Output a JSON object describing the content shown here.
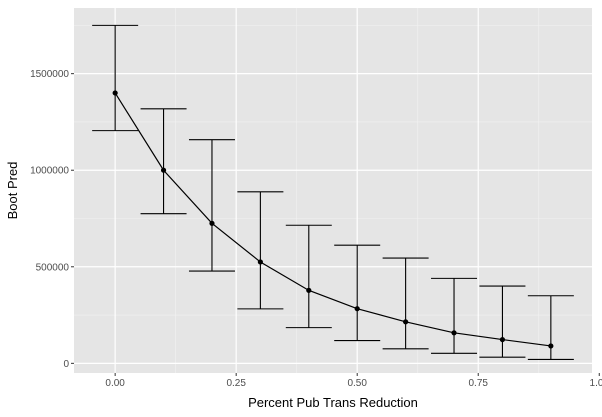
{
  "chart_data": {
    "type": "line",
    "title": "",
    "xlabel": "Percent Pub Trans Reduction",
    "ylabel": "Boot Pred",
    "xlim": [
      -0.085,
      0.985
    ],
    "ylim": [
      -50000,
      1840000
    ],
    "x_ticks": [
      0.0,
      0.25,
      0.5,
      0.75,
      1.0
    ],
    "x_tick_labels": [
      "0.00",
      "0.25",
      "0.50",
      "0.75",
      "1.00"
    ],
    "y_ticks": [
      0,
      500000,
      1000000,
      1500000
    ],
    "y_tick_labels": [
      "0",
      "500000",
      "1000000",
      "1500000"
    ],
    "grid": true,
    "legend": "none",
    "colors": {
      "panel": "#e5e5e5",
      "grid_major": "#ffffff",
      "grid_minor": "#f2f2f2",
      "series": "#000000"
    },
    "series": [
      {
        "x": [
          0.0,
          0.1,
          0.2,
          0.3,
          0.4,
          0.5,
          0.6,
          0.7,
          0.8,
          0.9
        ],
        "y": [
          1400000,
          1000000,
          725000,
          525000,
          378000,
          283000,
          215000,
          158000,
          123000,
          90000
        ],
        "lower": [
          1205000,
          775000,
          478000,
          282000,
          185000,
          118000,
          75000,
          52000,
          32000,
          20000
        ],
        "upper": [
          1750000,
          1318000,
          1158000,
          888000,
          715000,
          612000,
          545000,
          440000,
          400000,
          350000
        ]
      }
    ]
  }
}
